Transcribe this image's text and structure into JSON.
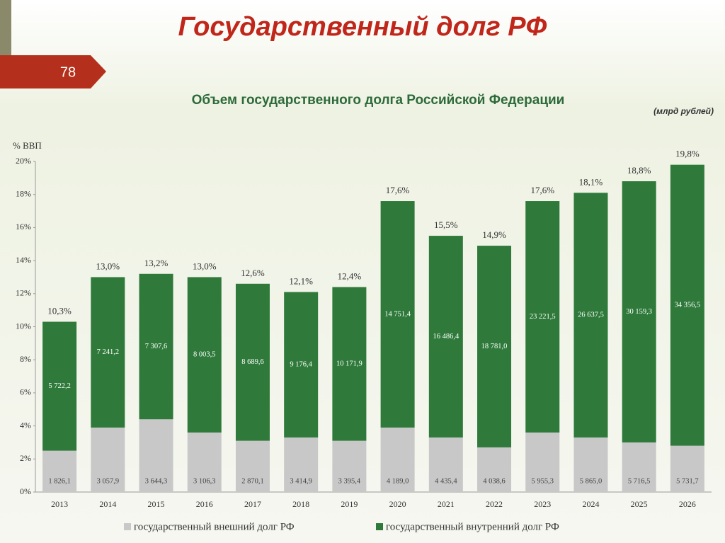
{
  "slide_title": "Государственный долг РФ",
  "slide_number": "78",
  "chart_data": {
    "type": "stacked_bar",
    "title": "Объем государственного долга Российской Федерации",
    "unit_note": "(млрд рублей)",
    "ylabel": "% ВВП",
    "categories": [
      "2013",
      "2014",
      "2015",
      "2016",
      "2017",
      "2018",
      "2019",
      "2020",
      "2021",
      "2022",
      "2023",
      "2024",
      "2025",
      "2026"
    ],
    "series": [
      {
        "name": "государственный внешний долг РФ",
        "color": "#c8c8c8",
        "values": [
          2.5,
          3.9,
          4.4,
          3.6,
          3.1,
          3.3,
          3.1,
          3.9,
          3.3,
          2.7,
          3.6,
          3.3,
          3.0,
          2.8
        ],
        "amount_labels": [
          "1 826,1",
          "3 057,9",
          "3 644,3",
          "3 106,3",
          "2 870,1",
          "3 414,9",
          "3 395,4",
          "4 189,0",
          "4 435,4",
          "4 038,6",
          "5 955,3",
          "5 865,0",
          "5 716,5",
          "5 731,7"
        ]
      },
      {
        "name": "государственный внутренний долг РФ",
        "color": "#2f7a3b",
        "values": [
          7.8,
          9.1,
          8.8,
          9.4,
          9.5,
          8.8,
          9.3,
          13.7,
          12.2,
          12.2,
          14.0,
          14.8,
          15.8,
          17.0
        ],
        "amount_labels": [
          "5 722,2",
          "7 241,2",
          "7 307,6",
          "8 003,5",
          "8 689,6",
          "9 176,4",
          "10 171,9",
          "14 751,4",
          "16 486,4",
          "18 781,0",
          "23 221,5",
          "26 637,5",
          "30 159,3",
          "34 356,5"
        ]
      }
    ],
    "totals": [
      10.3,
      13.0,
      13.2,
      13.0,
      12.6,
      12.1,
      12.4,
      17.6,
      15.5,
      14.9,
      17.6,
      18.1,
      18.8,
      19.8
    ],
    "total_labels": [
      "10,3%",
      "13,0%",
      "13,2%",
      "13,0%",
      "12,6%",
      "12,1%",
      "12,4%",
      "17,6%",
      "15,5%",
      "14,9%",
      "17,6%",
      "18,1%",
      "18,8%",
      "19,8%"
    ],
    "ylim": [
      0,
      20
    ],
    "yticks": [
      {
        "value": 0,
        "label": "0%"
      },
      {
        "value": 2,
        "label": "2%"
      },
      {
        "value": 4,
        "label": "4%"
      },
      {
        "value": 6,
        "label": "6%"
      },
      {
        "value": 8,
        "label": "8%"
      },
      {
        "value": 10,
        "label": "10%"
      },
      {
        "value": 12,
        "label": "12%"
      },
      {
        "value": 14,
        "label": "14%"
      },
      {
        "value": 16,
        "label": "16%"
      },
      {
        "value": 18,
        "label": "18%"
      },
      {
        "value": 20,
        "label": "20%"
      }
    ]
  }
}
